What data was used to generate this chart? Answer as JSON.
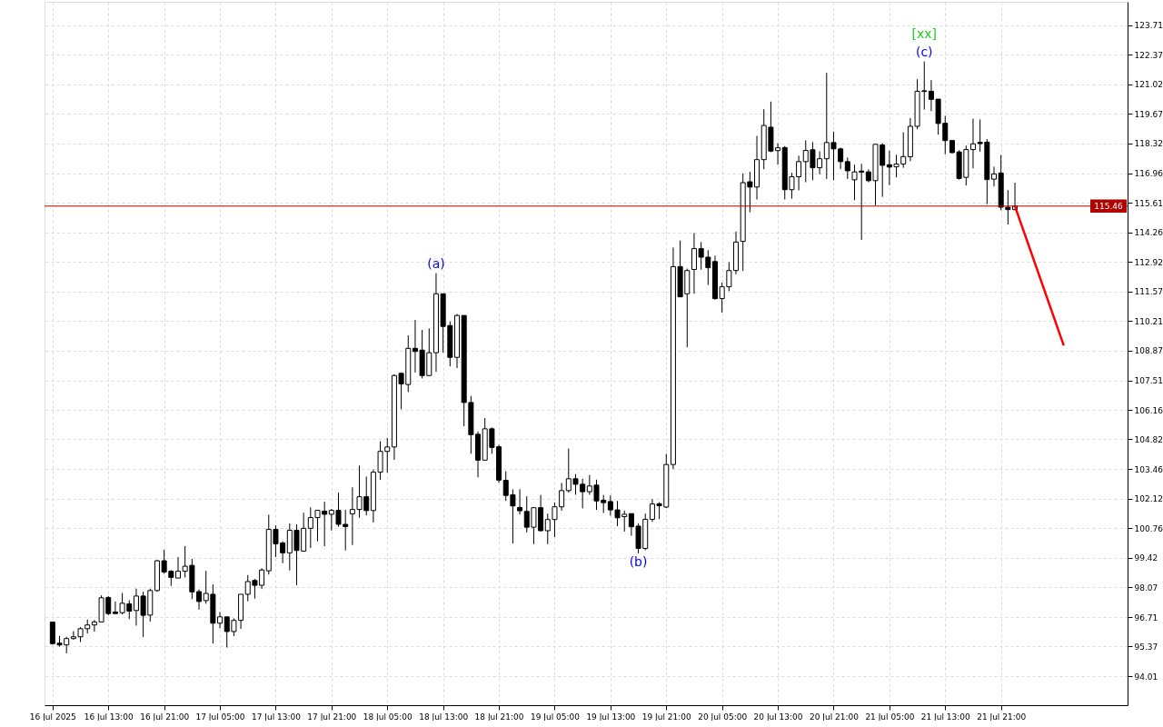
{
  "chart_data": {
    "type": "candlestick",
    "x": [
      "2025-07-16T05:00",
      "2025-07-16T06:00",
      "2025-07-16T07:00",
      "2025-07-16T08:00",
      "2025-07-16T09:00",
      "2025-07-16T10:00",
      "2025-07-16T11:00",
      "2025-07-16T12:00",
      "2025-07-16T13:00",
      "2025-07-16T14:00",
      "2025-07-16T15:00",
      "2025-07-16T16:00",
      "2025-07-16T17:00",
      "2025-07-16T18:00",
      "2025-07-16T19:00",
      "2025-07-16T20:00",
      "2025-07-16T21:00",
      "2025-07-16T22:00",
      "2025-07-16T23:00",
      "2025-07-17T00:00",
      "2025-07-17T01:00",
      "2025-07-17T02:00",
      "2025-07-17T03:00",
      "2025-07-17T04:00",
      "2025-07-17T05:00",
      "2025-07-17T06:00",
      "2025-07-17T07:00",
      "2025-07-17T08:00",
      "2025-07-17T09:00",
      "2025-07-17T10:00",
      "2025-07-17T11:00",
      "2025-07-17T12:00",
      "2025-07-17T13:00",
      "2025-07-17T14:00",
      "2025-07-17T15:00",
      "2025-07-17T16:00",
      "2025-07-17T17:00",
      "2025-07-17T18:00",
      "2025-07-17T19:00",
      "2025-07-17T20:00",
      "2025-07-17T21:00",
      "2025-07-17T22:00",
      "2025-07-17T23:00",
      "2025-07-18T00:00",
      "2025-07-18T01:00",
      "2025-07-18T02:00",
      "2025-07-18T03:00",
      "2025-07-18T04:00",
      "2025-07-18T05:00",
      "2025-07-18T06:00",
      "2025-07-18T07:00",
      "2025-07-18T08:00",
      "2025-07-18T09:00",
      "2025-07-18T10:00",
      "2025-07-18T11:00",
      "2025-07-18T12:00",
      "2025-07-18T13:00",
      "2025-07-18T14:00",
      "2025-07-18T15:00",
      "2025-07-18T16:00",
      "2025-07-18T17:00",
      "2025-07-18T18:00",
      "2025-07-18T19:00",
      "2025-07-18T20:00",
      "2025-07-18T21:00",
      "2025-07-18T22:00",
      "2025-07-18T23:00",
      "2025-07-19T00:00",
      "2025-07-19T01:00",
      "2025-07-19T02:00",
      "2025-07-19T03:00",
      "2025-07-19T04:00",
      "2025-07-19T05:00",
      "2025-07-19T06:00",
      "2025-07-19T07:00",
      "2025-07-19T08:00",
      "2025-07-19T09:00",
      "2025-07-19T10:00",
      "2025-07-19T11:00",
      "2025-07-19T12:00",
      "2025-07-19T13:00",
      "2025-07-19T14:00",
      "2025-07-19T15:00",
      "2025-07-19T16:00",
      "2025-07-19T17:00",
      "2025-07-19T18:00",
      "2025-07-19T19:00",
      "2025-07-19T20:00",
      "2025-07-19T21:00",
      "2025-07-19T22:00",
      "2025-07-19T23:00",
      "2025-07-20T00:00",
      "2025-07-20T01:00",
      "2025-07-20T02:00",
      "2025-07-20T03:00",
      "2025-07-20T04:00",
      "2025-07-20T05:00",
      "2025-07-20T06:00",
      "2025-07-20T07:00",
      "2025-07-20T08:00",
      "2025-07-20T09:00",
      "2025-07-20T10:00",
      "2025-07-20T11:00",
      "2025-07-20T12:00",
      "2025-07-20T13:00",
      "2025-07-20T14:00",
      "2025-07-20T15:00",
      "2025-07-20T16:00",
      "2025-07-20T17:00",
      "2025-07-20T18:00",
      "2025-07-20T19:00",
      "2025-07-20T20:00",
      "2025-07-20T21:00",
      "2025-07-20T22:00",
      "2025-07-20T23:00",
      "2025-07-21T00:00",
      "2025-07-21T01:00",
      "2025-07-21T02:00",
      "2025-07-21T03:00",
      "2025-07-21T04:00",
      "2025-07-21T05:00",
      "2025-07-21T06:00",
      "2025-07-21T07:00",
      "2025-07-21T08:00",
      "2025-07-21T09:00",
      "2025-07-21T10:00",
      "2025-07-21T11:00",
      "2025-07-21T12:00",
      "2025-07-21T13:00",
      "2025-07-21T14:00",
      "2025-07-21T15:00",
      "2025-07-21T16:00",
      "2025-07-21T17:00",
      "2025-07-21T18:00",
      "2025-07-21T19:00",
      "2025-07-21T20:00",
      "2025-07-21T21:00",
      "2025-07-21T22:00",
      "2025-07-21T23:00"
    ],
    "ohlc": [
      [
        96.48,
        96.5,
        95.45,
        95.5
      ],
      [
        95.52,
        95.85,
        95.36,
        95.44
      ],
      [
        95.44,
        95.81,
        95.06,
        95.73
      ],
      [
        95.73,
        96.07,
        95.68,
        95.81
      ],
      [
        95.81,
        96.25,
        95.57,
        96.18
      ],
      [
        96.18,
        96.6,
        95.96,
        96.35
      ],
      [
        96.35,
        96.57,
        96.05,
        96.49
      ],
      [
        96.49,
        97.7,
        96.49,
        97.59
      ],
      [
        97.6,
        97.67,
        96.8,
        96.87
      ],
      [
        96.94,
        97.42,
        96.87,
        96.87
      ],
      [
        96.91,
        97.81,
        96.83,
        97.34
      ],
      [
        97.31,
        97.48,
        96.62,
        96.98
      ],
      [
        97.01,
        98.01,
        96.32,
        97.67
      ],
      [
        97.67,
        97.87,
        95.8,
        96.79
      ],
      [
        96.8,
        98.01,
        96.5,
        97.92
      ],
      [
        97.92,
        99.32,
        97.86,
        99.28
      ],
      [
        99.28,
        99.78,
        98.68,
        98.77
      ],
      [
        98.8,
        98.85,
        98.13,
        98.52
      ],
      [
        98.49,
        99.45,
        98.49,
        98.8
      ],
      [
        98.8,
        99.95,
        98.52,
        99.03
      ],
      [
        99.07,
        99.37,
        97.53,
        97.86
      ],
      [
        97.87,
        97.97,
        97.05,
        97.42
      ],
      [
        97.46,
        98.82,
        97.32,
        97.79
      ],
      [
        97.75,
        98.2,
        95.5,
        96.43
      ],
      [
        96.43,
        96.94,
        96.2,
        96.72
      ],
      [
        96.72,
        96.72,
        95.32,
        96.05
      ],
      [
        96.05,
        96.65,
        95.84,
        96.56
      ],
      [
        96.56,
        97.75,
        96.17,
        97.75
      ],
      [
        97.75,
        98.63,
        97.43,
        98.33
      ],
      [
        98.38,
        98.45,
        97.55,
        98.16
      ],
      [
        98.16,
        98.93,
        97.99,
        98.86
      ],
      [
        98.82,
        101.38,
        98.65,
        100.71
      ],
      [
        100.71,
        100.89,
        99.45,
        100.05
      ],
      [
        100.09,
        100.17,
        99.17,
        99.64
      ],
      [
        99.64,
        100.98,
        98.84,
        100.67
      ],
      [
        100.67,
        100.94,
        98.16,
        99.75
      ],
      [
        99.72,
        101.47,
        99.72,
        100.76
      ],
      [
        100.76,
        101.72,
        99.86,
        101.25
      ],
      [
        101.25,
        101.58,
        100.17,
        101.58
      ],
      [
        101.54,
        101.97,
        99.94,
        101.4
      ],
      [
        101.4,
        101.65,
        100.66,
        101.58
      ],
      [
        101.58,
        102.39,
        100.83,
        100.94
      ],
      [
        100.94,
        101.6,
        99.75,
        100.84
      ],
      [
        101.42,
        102.63,
        100.0,
        101.62
      ],
      [
        101.62,
        103.62,
        101.24,
        102.2
      ],
      [
        102.2,
        103.12,
        101.35,
        101.57
      ],
      [
        101.57,
        103.44,
        101.03,
        103.32
      ],
      [
        103.32,
        104.73,
        102.97,
        104.27
      ],
      [
        104.27,
        104.88,
        103.3,
        104.47
      ],
      [
        104.47,
        107.79,
        103.88,
        107.73
      ],
      [
        107.83,
        107.87,
        106.19,
        107.35
      ],
      [
        107.32,
        109.56,
        106.98,
        108.97
      ],
      [
        108.97,
        110.27,
        107.87,
        108.83
      ],
      [
        108.89,
        109.81,
        107.6,
        107.73
      ],
      [
        107.73,
        109.88,
        107.73,
        108.77
      ],
      [
        108.77,
        112.4,
        107.9,
        111.46
      ],
      [
        111.46,
        111.46,
        108.77,
        109.97
      ],
      [
        110.01,
        110.19,
        108.15,
        108.56
      ],
      [
        108.56,
        110.54,
        108.07,
        110.47
      ],
      [
        110.47,
        110.47,
        105.42,
        106.5
      ],
      [
        106.5,
        106.8,
        104.16,
        105.03
      ],
      [
        105.05,
        105.18,
        103.09,
        103.87
      ],
      [
        103.87,
        105.79,
        103.87,
        105.3
      ],
      [
        105.3,
        105.36,
        104.16,
        104.45
      ],
      [
        104.48,
        104.57,
        102.84,
        102.96
      ],
      [
        102.95,
        103.36,
        102.01,
        102.26
      ],
      [
        102.29,
        102.54,
        100.07,
        101.78
      ],
      [
        101.71,
        102.54,
        101.39,
        101.56
      ],
      [
        101.53,
        102.22,
        100.57,
        100.81
      ],
      [
        100.81,
        101.7,
        100.04,
        101.7
      ],
      [
        101.7,
        102.28,
        100.62,
        100.65
      ],
      [
        100.65,
        101.43,
        100.04,
        101.16
      ],
      [
        101.16,
        101.94,
        100.36,
        101.74
      ],
      [
        101.74,
        102.83,
        101.56,
        102.48
      ],
      [
        102.48,
        104.4,
        102.39,
        103.02
      ],
      [
        103.02,
        103.23,
        102.29,
        102.77
      ],
      [
        102.77,
        103.02,
        101.67,
        102.43
      ],
      [
        102.43,
        103.19,
        102.29,
        102.69
      ],
      [
        102.73,
        102.98,
        101.6,
        102.01
      ],
      [
        102.04,
        102.28,
        101.46,
        101.93
      ],
      [
        101.98,
        102.26,
        101.34,
        101.6
      ],
      [
        101.6,
        102.01,
        100.86,
        101.24
      ],
      [
        101.29,
        101.57,
        100.61,
        101.4
      ],
      [
        101.43,
        101.43,
        100.42,
        100.83
      ],
      [
        100.86,
        100.99,
        99.62,
        99.84
      ],
      [
        99.84,
        101.43,
        99.76,
        101.17
      ],
      [
        101.17,
        102.09,
        101.05,
        101.87
      ],
      [
        101.88,
        101.95,
        101.18,
        101.79
      ],
      [
        101.73,
        104.15,
        101.68,
        103.67
      ],
      [
        103.67,
        113.57,
        103.46,
        112.7
      ],
      [
        112.7,
        113.89,
        111.32,
        111.32
      ],
      [
        111.46,
        112.61,
        109.02,
        112.52
      ],
      [
        112.57,
        114.23,
        111.46,
        113.52
      ],
      [
        113.52,
        113.82,
        112.56,
        113.13
      ],
      [
        113.13,
        113.45,
        111.86,
        112.65
      ],
      [
        112.93,
        113.2,
        111.19,
        111.24
      ],
      [
        111.24,
        111.97,
        110.6,
        111.78
      ],
      [
        111.78,
        112.9,
        111.58,
        112.52
      ],
      [
        112.52,
        114.3,
        112.35,
        113.82
      ],
      [
        113.85,
        116.95,
        112.5,
        116.53
      ],
      [
        116.57,
        117.03,
        115.18,
        116.33
      ],
      [
        116.33,
        118.66,
        115.76,
        117.58
      ],
      [
        117.58,
        119.88,
        117.14,
        119.14
      ],
      [
        119.06,
        120.23,
        117.92,
        117.97
      ],
      [
        117.99,
        118.33,
        117.35,
        118.12
      ],
      [
        118.13,
        118.2,
        115.76,
        116.21
      ],
      [
        116.21,
        116.98,
        115.8,
        116.8
      ],
      [
        116.8,
        117.76,
        116.18,
        117.49
      ],
      [
        117.49,
        118.46,
        116.55,
        118.0
      ],
      [
        118.03,
        118.38,
        116.64,
        117.21
      ],
      [
        117.21,
        117.96,
        116.91,
        117.62
      ],
      [
        117.62,
        121.54,
        116.7,
        118.36
      ],
      [
        118.36,
        118.86,
        116.64,
        118.07
      ],
      [
        118.07,
        118.13,
        117.14,
        117.49
      ],
      [
        117.49,
        117.68,
        116.7,
        117.07
      ],
      [
        116.66,
        117.35,
        115.73,
        117.02
      ],
      [
        117.06,
        117.39,
        113.92,
        117.01
      ],
      [
        117.02,
        117.14,
        116.55,
        116.62
      ],
      [
        116.62,
        118.28,
        115.49,
        118.28
      ],
      [
        118.25,
        118.33,
        115.88,
        117.32
      ],
      [
        117.35,
        117.99,
        116.42,
        117.24
      ],
      [
        117.25,
        117.8,
        116.77,
        117.38
      ],
      [
        117.38,
        118.83,
        117.21,
        117.72
      ],
      [
        117.71,
        119.47,
        117.51,
        119.1
      ],
      [
        119.1,
        121.25,
        118.97,
        120.7
      ],
      [
        120.72,
        122.06,
        119.86,
        120.69
      ],
      [
        120.7,
        121.21,
        119.79,
        120.33
      ],
      [
        120.34,
        120.34,
        118.72,
        119.23
      ],
      [
        119.24,
        119.58,
        117.83,
        118.45
      ],
      [
        118.45,
        118.48,
        117.87,
        117.9
      ],
      [
        117.93,
        118.01,
        116.67,
        116.72
      ],
      [
        116.77,
        118.22,
        116.4,
        118.04
      ],
      [
        118.04,
        119.45,
        117.18,
        118.3
      ],
      [
        118.37,
        119.41,
        117.94,
        118.31
      ],
      [
        118.38,
        118.52,
        115.55,
        116.67
      ],
      [
        116.69,
        117.26,
        116.36,
        116.93
      ],
      [
        116.97,
        117.79,
        115.27,
        115.41
      ],
      [
        115.41,
        116.19,
        114.62,
        115.3
      ],
      [
        115.3,
        116.53,
        115.27,
        115.46
      ]
    ],
    "series": [
      {
        "type": "line",
        "color": "#ff0000",
        "x": [
          "2025-07-21T23:00",
          "2025-07-22T06:00"
        ],
        "values": [
          115.46,
          109.1
        ]
      }
    ],
    "ref_lines": [
      {
        "axis": "y",
        "value": 115.46,
        "label": "115.46",
        "color": "#b00000"
      }
    ],
    "annotations": [
      {
        "text": "(a)",
        "x": "2025-07-18T12:00",
        "y": 112.4
      },
      {
        "text": "(b)",
        "x": "2025-07-19T17:00",
        "y": 99.62
      },
      {
        "text": "(c)",
        "x": "2025-07-21T10:00",
        "y": 122.06
      },
      {
        "text": "[xx]",
        "x": "2025-07-21T10:00",
        "y": 122.06
      }
    ],
    "xlim": [
      "2025-07-16T04:30",
      "2025-07-22T14:30"
    ],
    "xticks": [
      {
        "value": "2025-07-16T05:00",
        "label": "16 Jul 2025"
      },
      {
        "value": "2025-07-16T13:00",
        "label": "16 Jul 13:00"
      },
      {
        "value": "2025-07-16T21:00",
        "label": "16 Jul 21:00"
      },
      {
        "value": "2025-07-17T05:00",
        "label": "17 Jul 05:00"
      },
      {
        "value": "2025-07-17T13:00",
        "label": "17 Jul 13:00"
      },
      {
        "value": "2025-07-17T21:00",
        "label": "17 Jul 21:00"
      },
      {
        "value": "2025-07-18T05:00",
        "label": "18 Jul 05:00"
      },
      {
        "value": "2025-07-18T13:00",
        "label": "18 Jul 13:00"
      },
      {
        "value": "2025-07-18T21:00",
        "label": "18 Jul 21:00"
      },
      {
        "value": "2025-07-19T05:00",
        "label": "19 Jul 05:00"
      },
      {
        "value": "2025-07-19T13:00",
        "label": "19 Jul 13:00"
      },
      {
        "value": "2025-07-19T21:00",
        "label": "19 Jul 21:00"
      },
      {
        "value": "2025-07-20T05:00",
        "label": "20 Jul 05:00"
      },
      {
        "value": "2025-07-20T13:00",
        "label": "20 Jul 13:00"
      },
      {
        "value": "2025-07-20T21:00",
        "label": "20 Jul 21:00"
      },
      {
        "value": "2025-07-21T05:00",
        "label": "21 Jul 05:00"
      },
      {
        "value": "2025-07-21T13:00",
        "label": "21 Jul 13:00"
      },
      {
        "value": "2025-07-21T21:00",
        "label": "21 Jul 21:00"
      }
    ],
    "ylim": [
      92.69,
      124.78
    ],
    "yticks": [
      94.01,
      95.37,
      96.71,
      98.07,
      99.42,
      100.76,
      102.12,
      103.46,
      104.82,
      106.16,
      107.51,
      108.87,
      110.21,
      111.57,
      112.92,
      114.26,
      115.61,
      116.96,
      118.32,
      119.67,
      121.02,
      122.37,
      123.71
    ],
    "grid": true,
    "marker": "none",
    "line_style": "solid"
  }
}
